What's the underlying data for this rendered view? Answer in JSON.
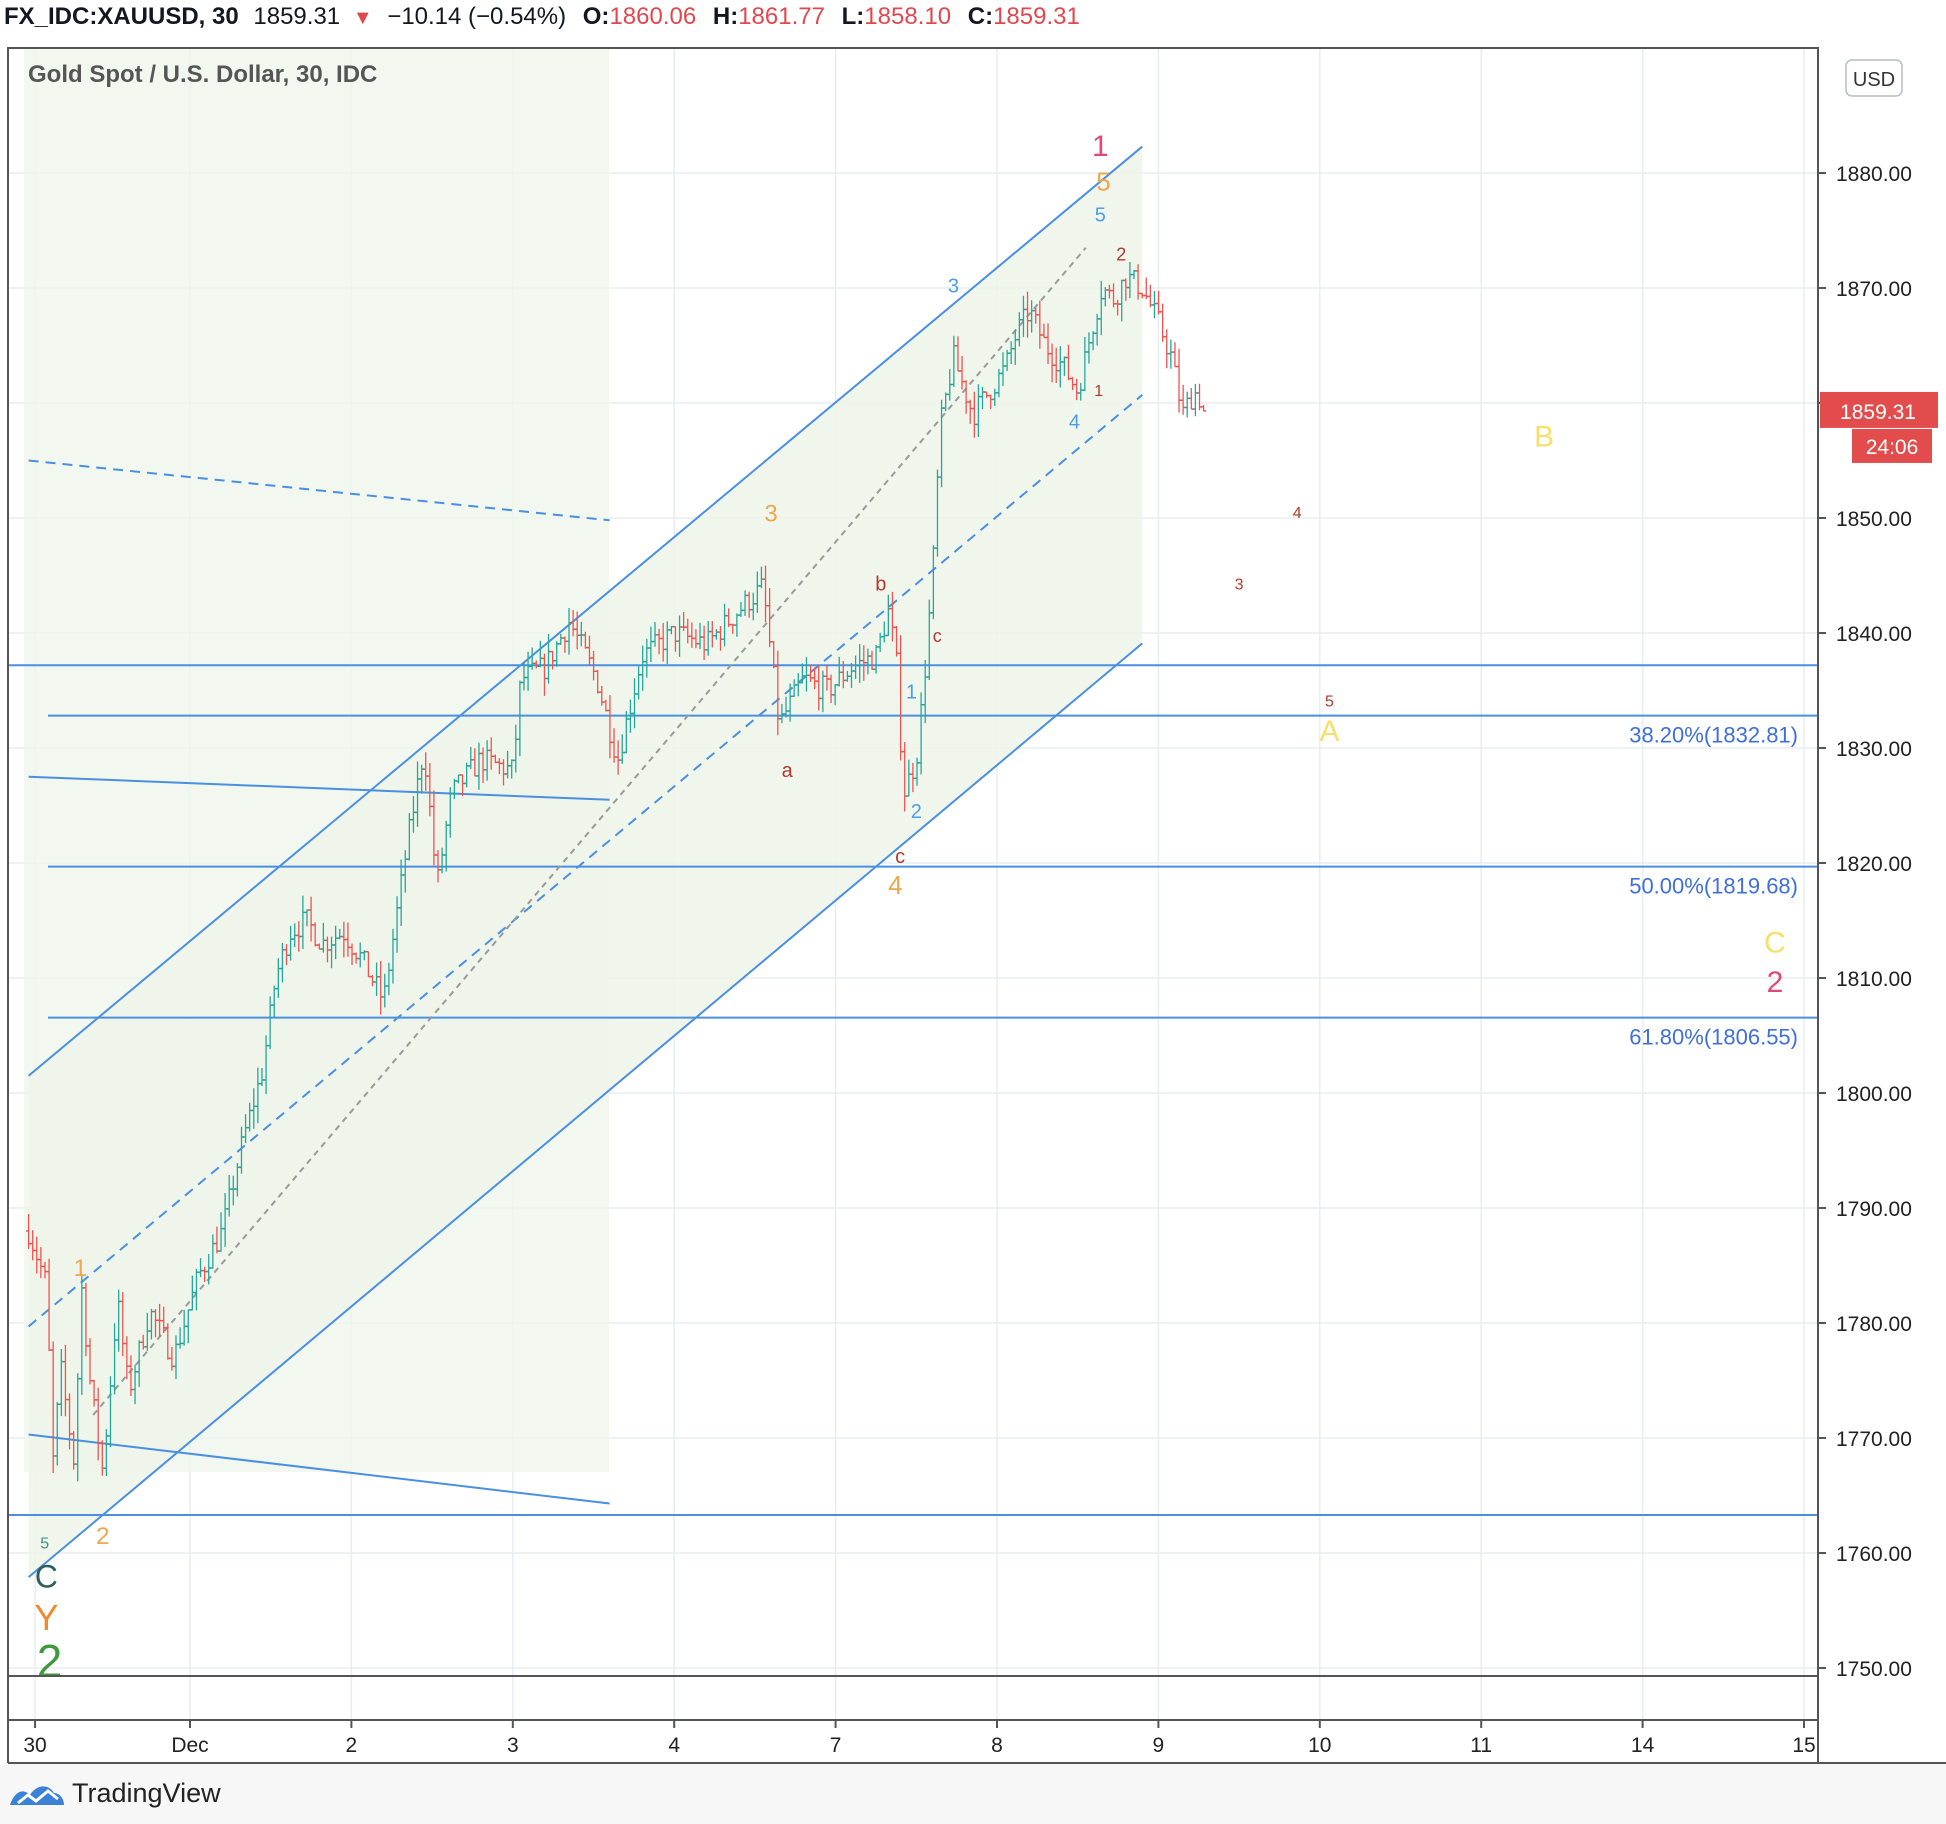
{
  "header": {
    "symbol": "FX_IDC:XAUUSD, 30",
    "last": "1859.31",
    "change_arrow": "▼",
    "change": "−10.14 (−0.54%)",
    "o_label": "O:",
    "o_value": "1860.06",
    "h_label": "H:",
    "h_value": "1861.77",
    "l_label": "L:",
    "l_value": "1858.10",
    "c_label": "C:",
    "c_value": "1859.31"
  },
  "legend_title": "Gold Spot / U.S. Dollar, 30, IDC",
  "currency_button": "USD",
  "price_tag": {
    "price": "1859.31",
    "countdown": "24:06"
  },
  "footer": {
    "brand": "TradingView",
    "logo_icon": "tradingview-logo-icon"
  },
  "colors": {
    "up": "#26a69a",
    "down": "#ef5350",
    "line": "#4a8fe0",
    "fib_text": "#3f6fd8",
    "shade": "#eef5e9",
    "grid": "#e8edf2",
    "price_tag": "#e34c4c"
  },
  "chart_data": {
    "type": "candlestick",
    "title": "Gold Spot / U.S. Dollar, 30, IDC",
    "ylim": [
      1743,
      1887
    ],
    "y_ticks": [
      "1750.00",
      "1760.00",
      "1770.00",
      "1780.00",
      "1790.00",
      "1800.00",
      "1810.00",
      "1820.00",
      "1830.00",
      "1840.00",
      "1850.00",
      "1860.00",
      "1870.00",
      "1880.00"
    ],
    "x_ticks": [
      {
        "label": "30",
        "t": 0.04
      },
      {
        "label": "Dec",
        "t": 1.0
      },
      {
        "label": "2",
        "t": 2.0
      },
      {
        "label": "3",
        "t": 3.0
      },
      {
        "label": "4",
        "t": 4.0
      },
      {
        "label": "7",
        "t": 5.0
      },
      {
        "label": "8",
        "t": 6.0
      },
      {
        "label": "9",
        "t": 7.0
      },
      {
        "label": "10",
        "t": 8.0
      },
      {
        "label": "11",
        "t": 9.0
      },
      {
        "label": "14",
        "t": 10.0
      },
      {
        "label": "15",
        "t": 11.0
      }
    ],
    "anchors": [
      [
        0.0,
        1788
      ],
      [
        0.12,
        1783
      ],
      [
        0.14,
        1766
      ],
      [
        0.2,
        1776
      ],
      [
        0.28,
        1768
      ],
      [
        0.33,
        1783
      ],
      [
        0.38,
        1775
      ],
      [
        0.46,
        1767
      ],
      [
        0.55,
        1782
      ],
      [
        0.62,
        1774
      ],
      [
        0.75,
        1781
      ],
      [
        0.9,
        1777
      ],
      [
        1.05,
        1784
      ],
      [
        1.2,
        1788
      ],
      [
        1.33,
        1796
      ],
      [
        1.45,
        1802
      ],
      [
        1.53,
        1810
      ],
      [
        1.62,
        1814
      ],
      [
        1.72,
        1815
      ],
      [
        1.82,
        1813
      ],
      [
        1.95,
        1814
      ],
      [
        2.05,
        1812
      ],
      [
        2.2,
        1808
      ],
      [
        2.35,
        1822
      ],
      [
        2.45,
        1830
      ],
      [
        2.53,
        1818
      ],
      [
        2.62,
        1826
      ],
      [
        2.8,
        1829
      ],
      [
        3.0,
        1828
      ],
      [
        3.05,
        1836
      ],
      [
        3.2,
        1837
      ],
      [
        3.35,
        1841
      ],
      [
        3.52,
        1836
      ],
      [
        3.65,
        1829
      ],
      [
        3.8,
        1838
      ],
      [
        4.0,
        1840
      ],
      [
        4.2,
        1839
      ],
      [
        4.4,
        1842
      ],
      [
        4.55,
        1844
      ],
      [
        4.65,
        1832
      ],
      [
        4.8,
        1836
      ],
      [
        4.95,
        1835
      ],
      [
        5.1,
        1837
      ],
      [
        5.25,
        1838
      ],
      [
        5.33,
        1842
      ],
      [
        5.38,
        1837
      ],
      [
        5.42,
        1826
      ],
      [
        5.5,
        1829
      ],
      [
        5.55,
        1836
      ],
      [
        5.6,
        1845
      ],
      [
        5.65,
        1858
      ],
      [
        5.73,
        1864
      ],
      [
        5.85,
        1859
      ],
      [
        5.95,
        1861
      ],
      [
        6.05,
        1863
      ],
      [
        6.12,
        1866
      ],
      [
        6.2,
        1868
      ],
      [
        6.3,
        1865
      ],
      [
        6.42,
        1863
      ],
      [
        6.5,
        1861
      ],
      [
        6.58,
        1866
      ],
      [
        6.65,
        1870
      ],
      [
        6.72,
        1869
      ],
      [
        6.8,
        1871
      ],
      [
        6.9,
        1870
      ],
      [
        7.0,
        1867
      ],
      [
        7.08,
        1864
      ],
      [
        7.15,
        1859
      ],
      [
        7.22,
        1861
      ],
      [
        7.28,
        1860
      ]
    ],
    "last_price": 1859.31,
    "fib_levels": [
      {
        "label": "38.20%(1832.81)",
        "price": 1832.81
      },
      {
        "label": "50.00%(1819.68)",
        "price": 1819.68
      },
      {
        "label": "61.80%(1806.55)",
        "price": 1806.55
      }
    ],
    "horizontal_lines": [
      1837.2,
      1763.3
    ],
    "channel": {
      "upper": [
        [
          0.0,
          1801.5
        ],
        [
          6.9,
          1882.3
        ]
      ],
      "lower": [
        [
          0.0,
          1757.9
        ],
        [
          6.9,
          1839.1
        ]
      ],
      "mid": [
        [
          0.0,
          1779.7
        ],
        [
          6.9,
          1860.7
        ]
      ],
      "inner": [
        [
          0.4,
          1772.0
        ],
        [
          6.55,
          1873.5
        ]
      ],
      "shade_until": 6.9
    },
    "other_lines": [
      {
        "p1": [
          0.0,
          1855.0
        ],
        "p2": [
          3.6,
          1849.8
        ],
        "dashed": true
      },
      {
        "p1": [
          0.0,
          1827.5
        ],
        "p2": [
          3.6,
          1825.5
        ],
        "dashed": false
      },
      {
        "p1": [
          0.0,
          1770.3
        ],
        "p2": [
          3.6,
          1764.3
        ],
        "dashed": false
      }
    ],
    "wave_labels": [
      {
        "text": "1",
        "t": 6.64,
        "p": 1881.5,
        "color": "#e0487a",
        "size": 30
      },
      {
        "text": "5",
        "t": 6.66,
        "p": 1878.5,
        "color": "#f0a64a",
        "size": 26
      },
      {
        "text": "5",
        "t": 6.64,
        "p": 1875.8,
        "color": "#4a9ee8",
        "size": 20
      },
      {
        "text": "2",
        "t": 6.77,
        "p": 1872.4,
        "color": "#b03a2e",
        "size": 18
      },
      {
        "text": "3",
        "t": 5.73,
        "p": 1869.6,
        "color": "#4a9ee8",
        "size": 20
      },
      {
        "text": "1",
        "t": 6.63,
        "p": 1860.6,
        "color": "#b03a2e",
        "size": 16
      },
      {
        "text": "4",
        "t": 6.48,
        "p": 1857.8,
        "color": "#4a9ee8",
        "size": 20
      },
      {
        "text": "B",
        "t": 9.39,
        "p": 1856.2,
        "color": "#f5e06a",
        "size": 30
      },
      {
        "text": "4",
        "t": 7.86,
        "p": 1850.0,
        "color": "#b03a2e",
        "size": 16
      },
      {
        "text": "3",
        "t": 4.6,
        "p": 1849.7,
        "color": "#f0a64a",
        "size": 24
      },
      {
        "text": "3",
        "t": 7.5,
        "p": 1843.8,
        "color": "#b03a2e",
        "size": 16
      },
      {
        "text": "b",
        "t": 5.28,
        "p": 1843.7,
        "color": "#b03a2e",
        "size": 20
      },
      {
        "text": "c",
        "t": 5.63,
        "p": 1839.2,
        "color": "#b03a2e",
        "size": 18
      },
      {
        "text": "1",
        "t": 5.47,
        "p": 1834.3,
        "color": "#4a9ee8",
        "size": 20
      },
      {
        "text": "5",
        "t": 8.06,
        "p": 1833.6,
        "color": "#b03a2e",
        "size": 16
      },
      {
        "text": "A",
        "t": 8.06,
        "p": 1830.6,
        "color": "#f5e06a",
        "size": 30
      },
      {
        "text": "a",
        "t": 4.7,
        "p": 1827.5,
        "color": "#b03a2e",
        "size": 20
      },
      {
        "text": "2",
        "t": 5.5,
        "p": 1823.9,
        "color": "#4a9ee8",
        "size": 20
      },
      {
        "text": "c",
        "t": 5.4,
        "p": 1820.0,
        "color": "#b03a2e",
        "size": 20
      },
      {
        "text": "4",
        "t": 5.37,
        "p": 1817.3,
        "color": "#f0a64a",
        "size": 26
      },
      {
        "text": "C",
        "t": 10.82,
        "p": 1812.2,
        "color": "#f5e06a",
        "size": 30
      },
      {
        "text": "2",
        "t": 10.82,
        "p": 1808.8,
        "color": "#e0487a",
        "size": 30
      },
      {
        "text": "1",
        "t": 0.32,
        "p": 1784.1,
        "color": "#f0a64a",
        "size": 24
      },
      {
        "text": "5",
        "t": 0.1,
        "p": 1760.4,
        "color": "#3f8f8a",
        "size": 16
      },
      {
        "text": "2",
        "t": 0.46,
        "p": 1760.8,
        "color": "#f0a64a",
        "size": 24
      },
      {
        "text": "C",
        "t": 0.11,
        "p": 1757.0,
        "color": "#2e5f5a",
        "size": 32
      },
      {
        "text": "Y",
        "t": 0.11,
        "p": 1753.3,
        "color": "#f08a2a",
        "size": 36
      },
      {
        "text": "2",
        "t": 0.13,
        "p": 1749.2,
        "color": "#3f9a3f",
        "size": 46
      }
    ]
  }
}
